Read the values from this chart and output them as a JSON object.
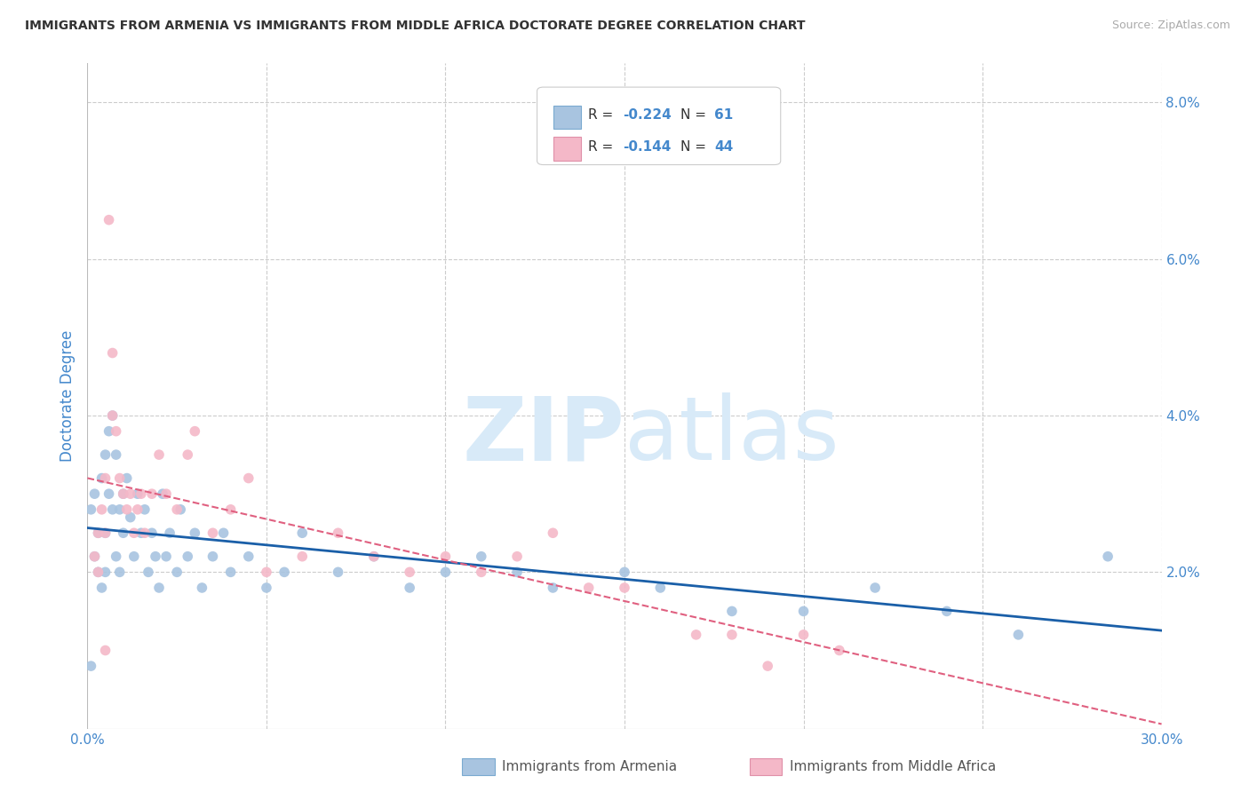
{
  "title": "IMMIGRANTS FROM ARMENIA VS IMMIGRANTS FROM MIDDLE AFRICA DOCTORATE DEGREE CORRELATION CHART",
  "source": "Source: ZipAtlas.com",
  "ylabel": "Doctorate Degree",
  "xlim": [
    0.0,
    0.3
  ],
  "ylim": [
    0.0,
    0.085
  ],
  "series1_color": "#a8c4e0",
  "series2_color": "#f4b8c8",
  "line1_color": "#1a5fa8",
  "line2_color": "#e06080",
  "R1": -0.224,
  "N1": 61,
  "R2": -0.144,
  "N2": 44,
  "background_color": "#ffffff",
  "grid_color": "#cccccc",
  "watermark_color": "#d8eaf8",
  "axis_label_color": "#4488cc",
  "text_color": "#333333",
  "source_color": "#aaaaaa",
  "series1_x": [
    0.001,
    0.002,
    0.002,
    0.003,
    0.003,
    0.004,
    0.004,
    0.005,
    0.005,
    0.005,
    0.006,
    0.006,
    0.007,
    0.007,
    0.008,
    0.008,
    0.009,
    0.009,
    0.01,
    0.01,
    0.011,
    0.012,
    0.013,
    0.014,
    0.015,
    0.016,
    0.017,
    0.018,
    0.019,
    0.02,
    0.021,
    0.022,
    0.023,
    0.025,
    0.026,
    0.028,
    0.03,
    0.032,
    0.035,
    0.038,
    0.04,
    0.045,
    0.05,
    0.055,
    0.06,
    0.07,
    0.08,
    0.09,
    0.1,
    0.11,
    0.12,
    0.13,
    0.15,
    0.16,
    0.18,
    0.2,
    0.22,
    0.24,
    0.26,
    0.285,
    0.001
  ],
  "series1_y": [
    0.028,
    0.022,
    0.03,
    0.025,
    0.02,
    0.032,
    0.018,
    0.035,
    0.025,
    0.02,
    0.038,
    0.03,
    0.04,
    0.028,
    0.035,
    0.022,
    0.028,
    0.02,
    0.03,
    0.025,
    0.032,
    0.027,
    0.022,
    0.03,
    0.025,
    0.028,
    0.02,
    0.025,
    0.022,
    0.018,
    0.03,
    0.022,
    0.025,
    0.02,
    0.028,
    0.022,
    0.025,
    0.018,
    0.022,
    0.025,
    0.02,
    0.022,
    0.018,
    0.02,
    0.025,
    0.02,
    0.022,
    0.018,
    0.02,
    0.022,
    0.02,
    0.018,
    0.02,
    0.018,
    0.015,
    0.015,
    0.018,
    0.015,
    0.012,
    0.022,
    0.008
  ],
  "series2_x": [
    0.002,
    0.003,
    0.003,
    0.004,
    0.005,
    0.005,
    0.006,
    0.007,
    0.007,
    0.008,
    0.009,
    0.01,
    0.011,
    0.012,
    0.013,
    0.014,
    0.015,
    0.016,
    0.018,
    0.02,
    0.022,
    0.025,
    0.028,
    0.03,
    0.035,
    0.04,
    0.045,
    0.05,
    0.06,
    0.07,
    0.08,
    0.09,
    0.1,
    0.11,
    0.12,
    0.13,
    0.14,
    0.15,
    0.17,
    0.18,
    0.19,
    0.2,
    0.21,
    0.005
  ],
  "series2_y": [
    0.022,
    0.025,
    0.02,
    0.028,
    0.032,
    0.025,
    0.065,
    0.048,
    0.04,
    0.038,
    0.032,
    0.03,
    0.028,
    0.03,
    0.025,
    0.028,
    0.03,
    0.025,
    0.03,
    0.035,
    0.03,
    0.028,
    0.035,
    0.038,
    0.025,
    0.028,
    0.032,
    0.02,
    0.022,
    0.025,
    0.022,
    0.02,
    0.022,
    0.02,
    0.022,
    0.025,
    0.018,
    0.018,
    0.012,
    0.012,
    0.008,
    0.012,
    0.01,
    0.01
  ]
}
